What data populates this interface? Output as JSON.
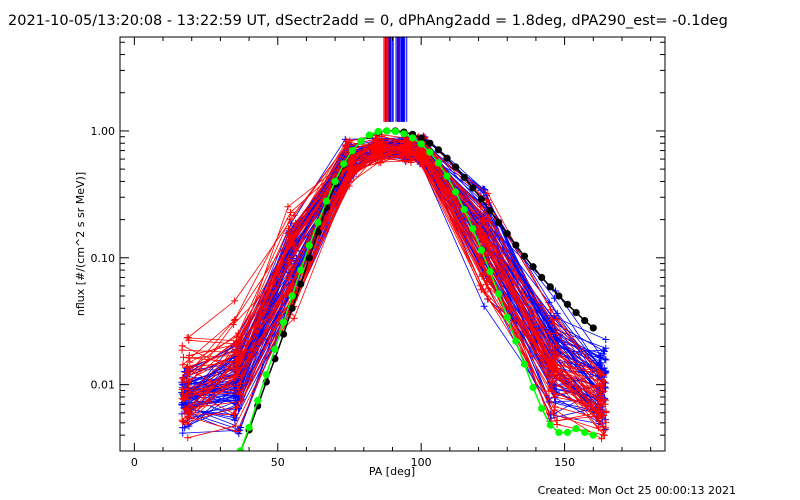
{
  "chart_data": {
    "type": "line",
    "title": "2021-10-05/13:20:08 - 13:22:59 UT, dSectr2add = 0, dPhAng2add = 1.8deg, dPA290_est= -0.1deg",
    "xlabel": "PA [deg]",
    "ylabel": "nflux [#/(cm^2 s sr MeV)]",
    "xlim": [
      -5,
      185
    ],
    "ylim": [
      0.003,
      5.5
    ],
    "yscale": "log",
    "x_ticks": [
      0,
      50,
      100,
      150
    ],
    "x_tick_labels": [
      "0",
      "50",
      "100",
      "150"
    ],
    "y_ticks": [
      0.01,
      0.1,
      1.0
    ],
    "y_tick_labels": [
      "0.01",
      "0.10",
      "1.00"
    ],
    "grid": false,
    "legend": "none",
    "colors": {
      "red_traces": "#ff0000",
      "blue_traces": "#0000ff",
      "black_fit": "#000000",
      "green_fit": "#00ff00"
    },
    "series": [
      {
        "color": "#000000",
        "marker": "filled-circle",
        "x": [
          37,
          40,
          43,
          46,
          49,
          52,
          55,
          58,
          61,
          64,
          67,
          70,
          73,
          76,
          79,
          82,
          85,
          88,
          91,
          94,
          97,
          100,
          103,
          106,
          109,
          112,
          115,
          118,
          121,
          124,
          127,
          130,
          133,
          136,
          139,
          142,
          145,
          148,
          151,
          154,
          157,
          160
        ],
        "y": [
          0.003,
          0.0044,
          0.0068,
          0.0105,
          0.016,
          0.025,
          0.04,
          0.062,
          0.1,
          0.16,
          0.25,
          0.38,
          0.54,
          0.7,
          0.83,
          0.92,
          0.98,
          1.0,
          1.0,
          0.98,
          0.94,
          0.88,
          0.8,
          0.71,
          0.61,
          0.52,
          0.43,
          0.355,
          0.29,
          0.235,
          0.19,
          0.155,
          0.126,
          0.103,
          0.085,
          0.07,
          0.059,
          0.05,
          0.043,
          0.037,
          0.032,
          0.028
        ]
      },
      {
        "color": "#00ff00",
        "marker": "filled-circle",
        "x": [
          37,
          40,
          43,
          46,
          49,
          52,
          55,
          58,
          61,
          64,
          67,
          70,
          73,
          76,
          79,
          82,
          85,
          88,
          91,
          94,
          97,
          100,
          103,
          106,
          109,
          112,
          115,
          118,
          121,
          124,
          127,
          130,
          133,
          136,
          139,
          142,
          145,
          148,
          151,
          154,
          157,
          160
        ],
        "y": [
          0.003,
          0.0046,
          0.0075,
          0.012,
          0.019,
          0.031,
          0.05,
          0.08,
          0.125,
          0.19,
          0.28,
          0.4,
          0.55,
          0.7,
          0.83,
          0.93,
          0.99,
          1.0,
          0.99,
          0.95,
          0.88,
          0.79,
          0.68,
          0.56,
          0.44,
          0.33,
          0.24,
          0.17,
          0.115,
          0.078,
          0.052,
          0.034,
          0.022,
          0.0145,
          0.0095,
          0.0065,
          0.0048,
          0.0042,
          0.0042,
          0.0045,
          0.0042,
          0.004
        ]
      }
    ],
    "trace_bundles": [
      {
        "name": "",
        "color": "#0000ff",
        "marker": "plus",
        "count": 70,
        "x": [
          18,
          36,
          55,
          75,
          85,
          95,
          100,
          122,
          146,
          163
        ],
        "y_envelope": {
          "low": [
            0.0035,
            0.0035,
            0.03,
            0.35,
            0.55,
            0.55,
            0.5,
            0.04,
            0.0035,
            0.0035
          ],
          "high": [
            0.016,
            0.027,
            0.25,
            0.9,
            0.95,
            0.95,
            0.95,
            0.47,
            0.08,
            0.026
          ]
        }
      },
      {
        "name": "",
        "color": "#ff0000",
        "marker": "plus",
        "count": 45,
        "x": [
          18,
          36,
          55,
          75,
          85,
          95,
          100,
          122,
          146,
          163
        ],
        "y_envelope": {
          "low": [
            0.0035,
            0.0035,
            0.03,
            0.35,
            0.55,
            0.55,
            0.5,
            0.04,
            0.0035,
            0.0035
          ],
          "high": [
            0.03,
            0.058,
            0.3,
            0.9,
            0.95,
            0.95,
            0.95,
            0.35,
            0.05,
            0.015
          ]
        }
      }
    ],
    "spikes": {
      "x_range": [
        86,
        95
      ],
      "y_from": 1.18,
      "colors": [
        "#0000ff",
        "#ff0000"
      ]
    }
  },
  "footer": "Created: Mon Oct 25 00:00:13 2021"
}
